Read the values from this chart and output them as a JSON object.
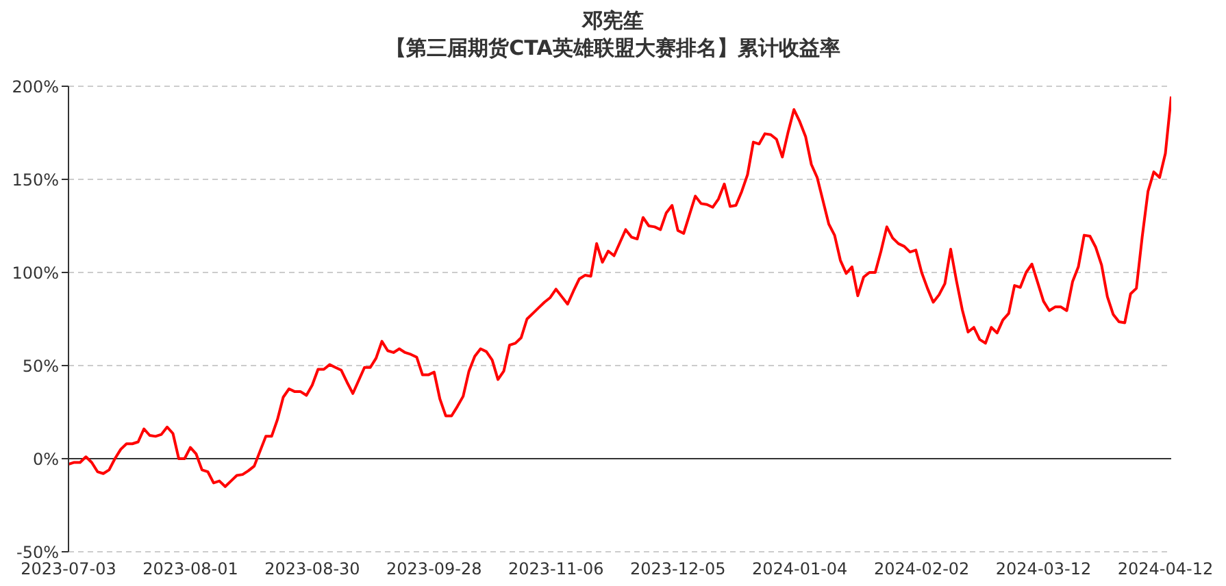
{
  "chart_data": {
    "type": "line",
    "title": "邓宪笙",
    "subtitle": "【第三届期货CTA英雄联盟大赛排名】累计收益率",
    "categories": [
      "2023-07-03",
      null,
      null,
      null,
      null,
      null,
      null,
      null,
      null,
      null,
      null,
      null,
      null,
      null,
      null,
      null,
      null,
      null,
      null,
      null,
      null,
      "2023-08-01",
      null,
      null,
      null,
      null,
      null,
      null,
      null,
      null,
      null,
      null,
      null,
      null,
      null,
      null,
      null,
      null,
      null,
      null,
      null,
      null,
      "2023-08-30",
      null,
      null,
      null,
      null,
      null,
      null,
      null,
      null,
      null,
      null,
      null,
      null,
      null,
      null,
      null,
      null,
      null,
      null,
      null,
      null,
      "2023-09-28",
      null,
      null,
      null,
      null,
      null,
      null,
      null,
      null,
      null,
      null,
      null,
      null,
      null,
      null,
      null,
      null,
      null,
      null,
      null,
      null,
      "2023-11-06",
      null,
      null,
      null,
      null,
      null,
      null,
      null,
      null,
      null,
      null,
      null,
      null,
      null,
      null,
      null,
      null,
      null,
      null,
      null,
      null,
      "2023-12-05",
      null,
      null,
      null,
      null,
      null,
      null,
      null,
      null,
      null,
      null,
      null,
      null,
      null,
      null,
      null,
      null,
      null,
      null,
      null,
      null,
      "2024-01-04",
      null,
      null,
      null,
      null,
      null,
      null,
      null,
      null,
      null,
      null,
      null,
      null,
      null,
      null,
      null,
      null,
      null,
      null,
      null,
      null,
      "2024-02-02",
      null,
      null,
      null,
      null,
      null,
      null,
      null,
      null,
      null,
      null,
      null,
      null,
      null,
      null,
      null,
      null,
      null,
      null,
      null,
      null,
      "2024-03-12",
      null,
      null,
      null,
      null,
      null,
      null,
      null,
      null,
      null,
      null,
      null,
      null,
      null,
      null,
      null,
      null,
      null,
      null,
      null,
      null,
      "2024-04-12",
      null
    ],
    "series": [
      {
        "color": "#ff0000",
        "values": [
          -3,
          -2,
          -2,
          1,
          -2,
          -7,
          -8,
          -6,
          0,
          5,
          8,
          8,
          9,
          16,
          12.5,
          12,
          13,
          17,
          13.5,
          0,
          0,
          6,
          2.5,
          -6,
          -7,
          -13,
          -12,
          -15,
          -12,
          -9,
          -8.5,
          -6.5,
          -4,
          4,
          12,
          12,
          21,
          33,
          37.5,
          36,
          36,
          34,
          39.5,
          48,
          48,
          50.5,
          49,
          47.5,
          41,
          35,
          42,
          49,
          49,
          54,
          63,
          58,
          57,
          59,
          57,
          56,
          54.5,
          45,
          45,
          46.5,
          32,
          23,
          23,
          28,
          33.5,
          47,
          55,
          59,
          57.5,
          53,
          42.5,
          47,
          61,
          62,
          65,
          75,
          78,
          81,
          84,
          86.5,
          91,
          87,
          83,
          90,
          96.5,
          98.5,
          98,
          115.5,
          105.5,
          111.5,
          109,
          116,
          123,
          119,
          118,
          129.5,
          125,
          124.5,
          123,
          132,
          136,
          122.5,
          121,
          131,
          141,
          137,
          136.5,
          135,
          139.5,
          147.5,
          135.5,
          136,
          143.5,
          152.5,
          170,
          169,
          174.5,
          174,
          171.5,
          162,
          175.5,
          187.5,
          181,
          173,
          158,
          151,
          138.5,
          126,
          120,
          106.5,
          99.5,
          103,
          87.5,
          97.5,
          100,
          100,
          111.5,
          124.5,
          118.5,
          115.5,
          114,
          111,
          112,
          100,
          91.5,
          84,
          88,
          94,
          112.5,
          95.5,
          80,
          68,
          70.5,
          64,
          62,
          70.5,
          67.5,
          74.5,
          78,
          93,
          92,
          100,
          104.5,
          94.5,
          84.5,
          79.5,
          81.5,
          81.5,
          79.5,
          95,
          103,
          120,
          119.5,
          113.5,
          104,
          87,
          77.5,
          73.5,
          73,
          88.5,
          91.5,
          119,
          143.5,
          154,
          151,
          164,
          194.5
        ]
      }
    ],
    "ylim": [
      -50,
      200
    ],
    "yticks": [
      {
        "value": -50,
        "label": "-50%"
      },
      {
        "value": 0,
        "label": "0%"
      },
      {
        "value": 50,
        "label": "50%"
      },
      {
        "value": 100,
        "label": "100%"
      },
      {
        "value": 150,
        "label": "150%"
      },
      {
        "value": 200,
        "label": "200%"
      }
    ],
    "grid": "y",
    "marker": "none",
    "line_style": "solid"
  }
}
